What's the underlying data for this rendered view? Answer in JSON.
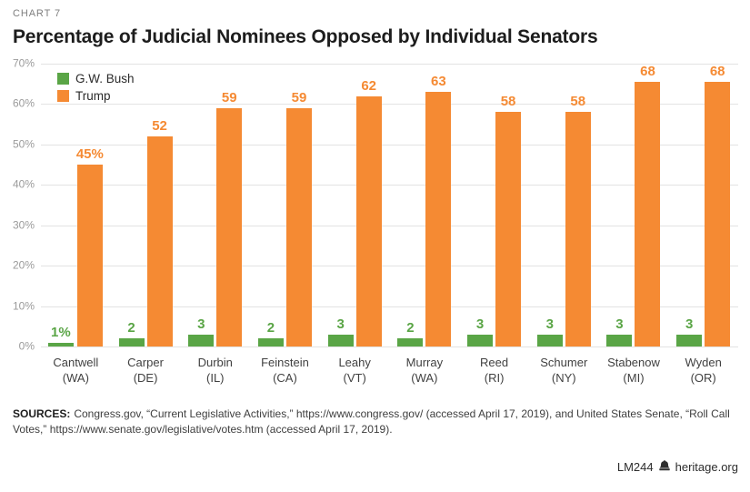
{
  "kicker": "CHART 7",
  "title": "Percentage of Judicial Nominees Opposed by Individual Senators",
  "legend": [
    {
      "label": "G.W. Bush",
      "color": "#5AA546"
    },
    {
      "label": "Trump",
      "color": "#F58A33"
    }
  ],
  "chart_data": {
    "type": "bar",
    "title": "Percentage of Judicial Nominees Opposed by Individual Senators",
    "categories": [
      {
        "name": "Cantwell",
        "state": "(WA)"
      },
      {
        "name": "Carper",
        "state": "(DE)"
      },
      {
        "name": "Durbin",
        "state": "(IL)"
      },
      {
        "name": "Feinstein",
        "state": "(CA)"
      },
      {
        "name": "Leahy",
        "state": "(VT)"
      },
      {
        "name": "Murray",
        "state": "(WA)"
      },
      {
        "name": "Reed",
        "state": "(RI)"
      },
      {
        "name": "Schumer",
        "state": "(NY)"
      },
      {
        "name": "Stabenow",
        "state": "(MI)"
      },
      {
        "name": "Wyden",
        "state": "(OR)"
      }
    ],
    "series": [
      {
        "name": "G.W. Bush",
        "color": "#5AA546",
        "values": [
          1,
          2,
          3,
          2,
          3,
          2,
          3,
          3,
          3,
          3
        ],
        "labels": [
          "1%",
          "2",
          "3",
          "2",
          "3",
          "2",
          "3",
          "3",
          "3",
          "3"
        ]
      },
      {
        "name": "Trump",
        "color": "#F58A33",
        "values": [
          45,
          52,
          59,
          59,
          62,
          63,
          58,
          58,
          68,
          68
        ],
        "labels": [
          "45%",
          "52",
          "59",
          "59",
          "62",
          "63",
          "58",
          "58",
          "68",
          "68"
        ]
      }
    ],
    "xlabel": "",
    "ylabel": "",
    "ylim": [
      0,
      70
    ],
    "yticks": [
      {
        "label": "70%",
        "value": 70
      },
      {
        "label": "60%",
        "value": 60
      },
      {
        "label": "50%",
        "value": 50
      },
      {
        "label": "40%",
        "value": 40
      },
      {
        "label": "30%",
        "value": 30
      },
      {
        "label": "20%",
        "value": 20
      },
      {
        "label": "10%",
        "value": 10
      },
      {
        "label": "0%",
        "value": 0
      }
    ],
    "grid": true,
    "legend_position": "top-left"
  },
  "sources": {
    "label": "SOURCES:",
    "text": "Congress.gov, “Current Legislative Activities,” https://www.congress.gov/ (accessed April 17, 2019), and United States Senate, “Roll Call Votes,” https://www.senate.gov/legislative/votes.htm (accessed April 17, 2019)."
  },
  "footer": {
    "id": "LM244",
    "icon": "liberty-bell-icon",
    "site": "heritage.org"
  }
}
